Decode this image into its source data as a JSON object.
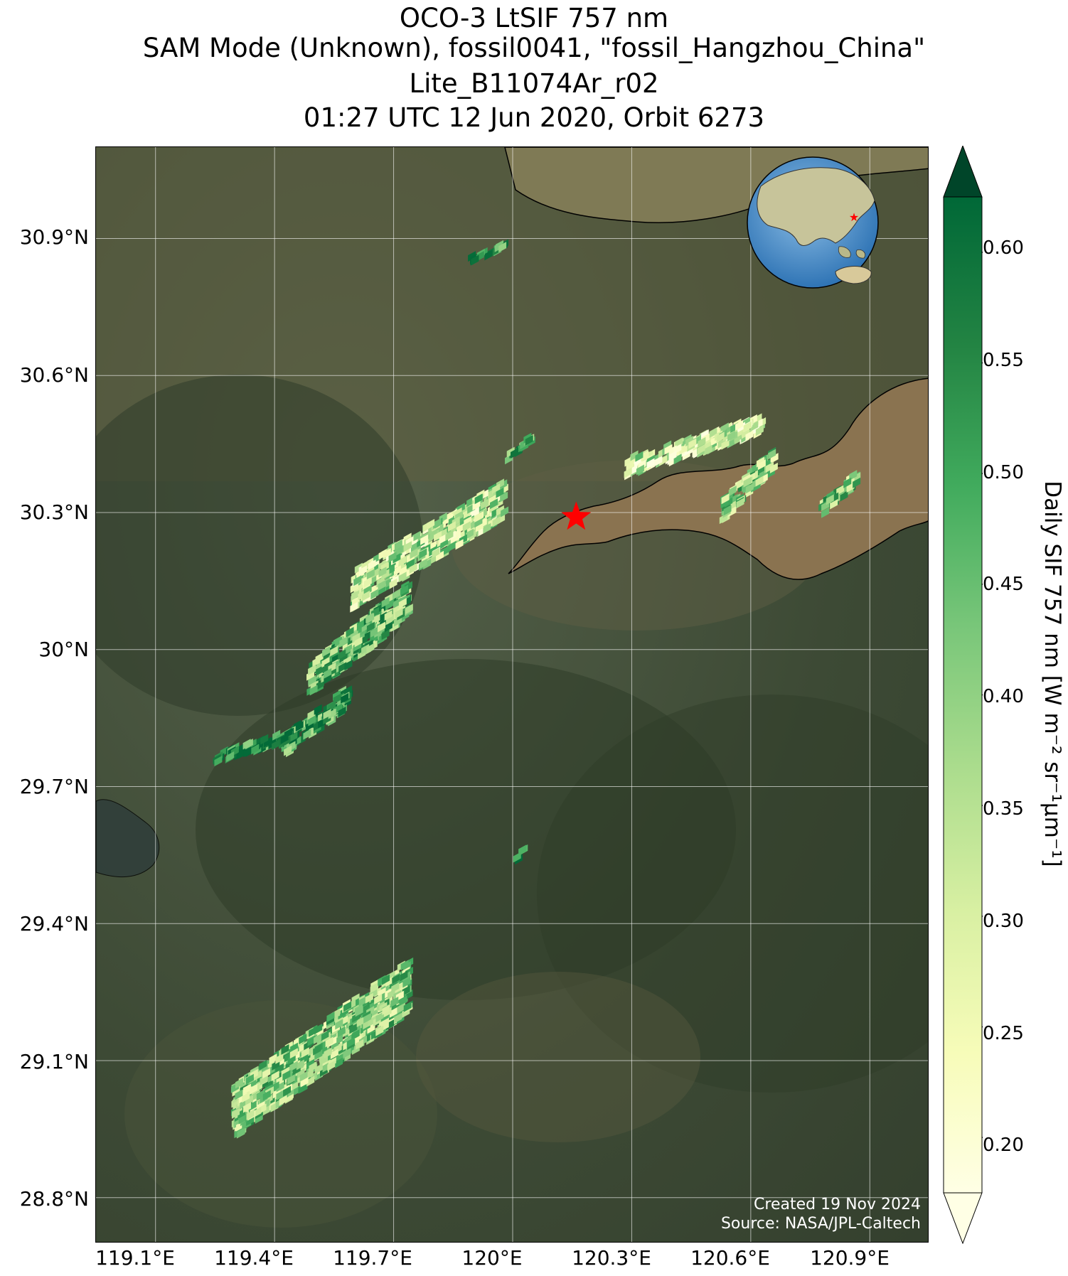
{
  "title": {
    "line1": "OCO-3 LtSIF 757 nm",
    "line2": "SAM Mode (Unknown), fossil0041, \"fossil_Hangzhou_China\"",
    "line3": "Lite_B11074Ar_r02",
    "line4": "01:27 UTC 12 Jun 2020, Orbit 6273"
  },
  "map": {
    "lat_ticks": [
      "30.9°N",
      "30.6°N",
      "30.3°N",
      "30°N",
      "29.7°N",
      "29.4°N",
      "29.1°N",
      "28.8°N"
    ],
    "lon_ticks": [
      "119.1°E",
      "119.4°E",
      "119.7°E",
      "120°E",
      "120.3°E",
      "120.6°E",
      "120.9°E"
    ],
    "lon_range": [
      118.95,
      121.05
    ],
    "lat_range": [
      28.7,
      31.1
    ],
    "target": {
      "name": "fossil_Hangzhou_China",
      "lon": 120.16,
      "lat": 30.29,
      "marker": "red-star"
    },
    "colors": {
      "land": "#3d4a35",
      "water": "#7f7a55",
      "estuary": "#8a7350",
      "coast": "#000000",
      "marker": "#ff0000"
    }
  },
  "credit": {
    "line1": "Created 19 Nov 2024",
    "line2": "Source: NASA/JPL-Caltech"
  },
  "colorbar": {
    "label": "Daily SIF 757 nm [W m⁻² sr⁻¹μm⁻¹]",
    "ticks": [
      "0.60",
      "0.55",
      "0.50",
      "0.45",
      "0.40",
      "0.35",
      "0.30",
      "0.25",
      "0.20"
    ],
    "range": [
      0.175,
      0.625
    ],
    "colormap": "YlGn",
    "extend": "both"
  },
  "chart_data": {
    "type": "heatmap",
    "title": "OCO-3 LtSIF 757 nm",
    "xlabel": "",
    "ylabel": "",
    "value_label": "Daily SIF 757 nm [W m⁻² sr⁻¹μm⁻¹]",
    "xlim": [
      118.95,
      121.05
    ],
    "ylim": [
      28.7,
      31.1
    ],
    "clim": [
      0.175,
      0.625
    ],
    "clusters": [
      {
        "lon_range": [
          119.87,
          119.97
        ],
        "lat_range": [
          30.83,
          30.88
        ],
        "approx_mean": 0.55
      },
      {
        "lon_range": [
          119.98,
          120.04
        ],
        "lat_range": [
          30.4,
          30.46
        ],
        "approx_mean": 0.5
      },
      {
        "lon_range": [
          119.59,
          119.97
        ],
        "lat_range": [
          30.08,
          30.36
        ],
        "approx_mean": 0.35
      },
      {
        "lon_range": [
          120.28,
          120.62
        ],
        "lat_range": [
          30.37,
          30.5
        ],
        "approx_mean": 0.32
      },
      {
        "lon_range": [
          120.52,
          120.65
        ],
        "lat_range": [
          30.27,
          30.43
        ],
        "approx_mean": 0.4
      },
      {
        "lon_range": [
          120.77,
          120.86
        ],
        "lat_range": [
          30.28,
          30.38
        ],
        "approx_mean": 0.42
      },
      {
        "lon_range": [
          119.48,
          119.73
        ],
        "lat_range": [
          29.88,
          30.14
        ],
        "approx_mean": 0.45
      },
      {
        "lon_range": [
          119.41,
          119.58
        ],
        "lat_range": [
          29.75,
          29.91
        ],
        "approx_mean": 0.5
      },
      {
        "lon_range": [
          119.24,
          119.43
        ],
        "lat_range": [
          29.74,
          29.81
        ],
        "approx_mean": 0.55
      },
      {
        "lon_range": [
          119.29,
          119.73
        ],
        "lat_range": [
          28.92,
          29.31
        ],
        "approx_mean": 0.4
      },
      {
        "lon_range": [
          120.0,
          120.02
        ],
        "lat_range": [
          29.52,
          29.56
        ],
        "approx_mean": 0.55
      }
    ]
  }
}
